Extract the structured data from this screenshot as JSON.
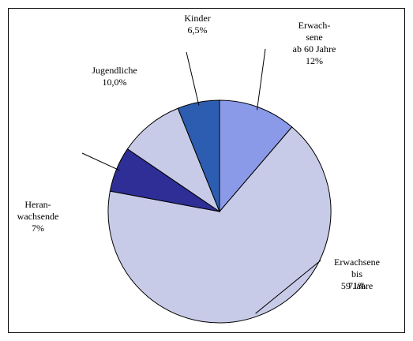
{
  "chart_data": {
    "type": "pie",
    "categories": [
      "Erwach-\nsene\nab 60 Jahre",
      "Erwachsene bis\n59 Jahre",
      "Heran-\nwachsende",
      "Jugendliche",
      "Kinder"
    ],
    "values": [
      12,
      71,
      7,
      10.0,
      6.5
    ],
    "value_labels": [
      "12%",
      "71%",
      "7%",
      "10,0%",
      "6,5%"
    ],
    "colors": [
      "#8a9ae8",
      "#c8cbe8",
      "#2e2e96",
      "#c8cbe8",
      "#2d5db0"
    ]
  }
}
